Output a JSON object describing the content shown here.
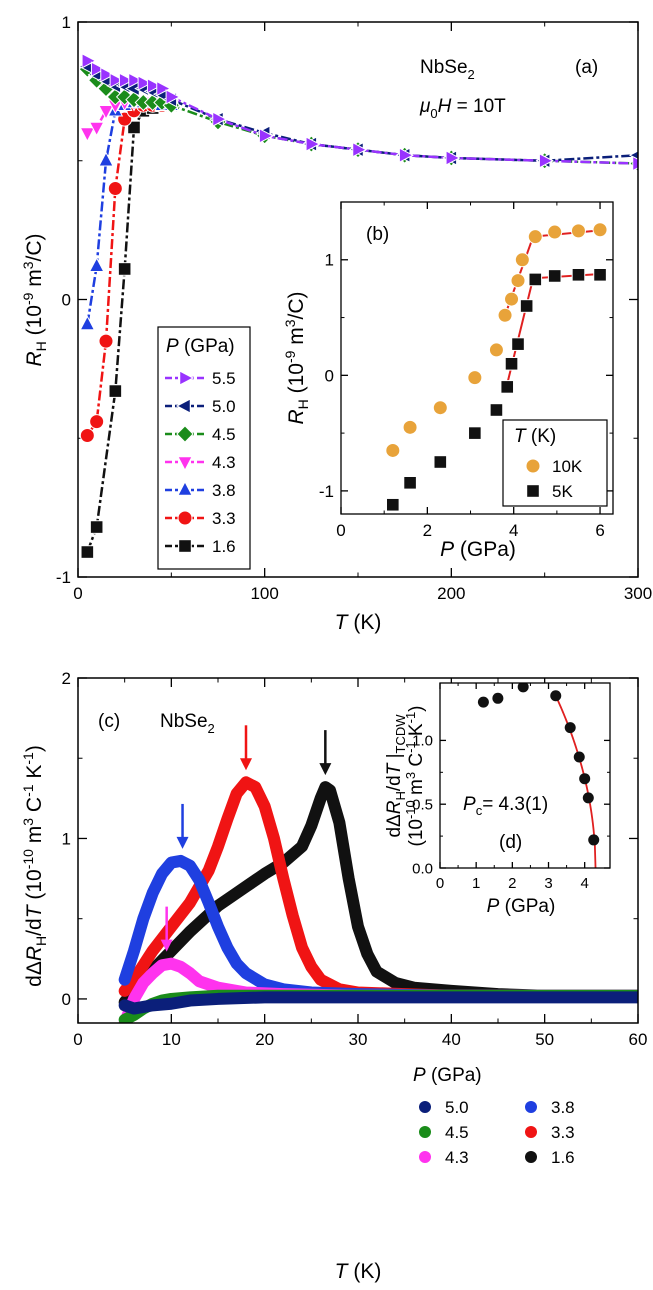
{
  "panels": {
    "a": {
      "letter": "(a)",
      "material_main": "NbSe",
      "material_sub": "2",
      "field_mu": "μ",
      "field_sub": "0",
      "field_H": "H",
      "field_value": " = 10T",
      "ylabel_main": "R",
      "ylabel_sub": "H",
      "ylabel_units": " (10",
      "ylabel_exp": "-9",
      "ylabel_tail": " m",
      "ylabel_exp2": "3",
      "ylabel_end": "/C)",
      "xlabel_italic": "T",
      "xlabel_units": " (K)",
      "legend_title_italic": "P",
      "legend_title_units": " (GPa)"
    },
    "b": {
      "letter": "(b)",
      "ylabel_main": "R",
      "ylabel_sub": "H",
      "ylabel_units": " (10",
      "ylabel_exp": "-9",
      "ylabel_tail": " m",
      "ylabel_exp2": "3",
      "ylabel_end": "/C)",
      "xlabel_italic": "P",
      "xlabel_units": " (GPa)",
      "legend_title_italic": "T",
      "legend_title_units": " (K)"
    },
    "c": {
      "letter": "(c)",
      "material_main": "NbSe",
      "material_sub": "2",
      "ylabel_d": "dΔ",
      "ylabel_R": "R",
      "ylabel_sub": "H",
      "ylabel_mid": "/d",
      "ylabel_T": "T",
      "ylabel_units": " (10",
      "ylabel_exp": "-10",
      "ylabel_tail": " m",
      "ylabel_exp2": "3",
      "ylabel_c": " C",
      "ylabel_exp3": "-1",
      "ylabel_k": " K",
      "ylabel_exp4": "-1",
      "ylabel_end": ")",
      "xlabel_italic": "T",
      "xlabel_units": " (K)",
      "legend_title_italic": "P",
      "legend_title_units": " (GPa)"
    },
    "d": {
      "letter": "(d)",
      "pc_italic": "P",
      "pc_sub": "c",
      "pc_value": "= 4.3(1)",
      "ylabel_line1_d": "dΔ",
      "ylabel_line1_R": "R",
      "ylabel_line1_sub": "H",
      "ylabel_line1_mid": "/d",
      "ylabel_line1_T": "T",
      "ylabel_line1_bar": " |",
      "ylabel_line1_tc": "TCDW",
      "ylabel_line2": "(10",
      "ylabel_line2_exp": "-10",
      "ylabel_line2_tail": " m",
      "ylabel_line2_exp2": "3",
      "ylabel_line2_c": " C",
      "ylabel_line2_exp3": "-1",
      "ylabel_line2_k": " K",
      "ylabel_line2_exp4": "-1",
      "ylabel_line2_end": ")",
      "xlabel_italic": "P",
      "xlabel_units": " (GPa)"
    }
  },
  "chart_data": [
    {
      "panel": "a",
      "type": "line",
      "xlim": [
        0,
        300
      ],
      "ylim": [
        -1,
        1
      ],
      "x_ticks": [
        0,
        100,
        200,
        300
      ],
      "y_ticks": [
        -1,
        0,
        1
      ],
      "x_tick_labels": [
        "0",
        "100",
        "200",
        "300"
      ],
      "y_tick_labels": [
        "-1",
        "0",
        "1"
      ],
      "legend": "left-middle",
      "series": [
        {
          "name": "5.5",
          "marker": "triangle-right",
          "color": "#9933ff",
          "x": [
            5,
            10,
            15,
            20,
            25,
            30,
            35,
            40,
            45,
            50,
            75,
            100,
            125,
            150,
            175,
            200,
            250,
            300
          ],
          "y": [
            0.86,
            0.83,
            0.81,
            0.79,
            0.79,
            0.79,
            0.78,
            0.77,
            0.76,
            0.73,
            0.65,
            0.59,
            0.56,
            0.54,
            0.52,
            0.51,
            0.5,
            0.49
          ]
        },
        {
          "name": "5.0",
          "marker": "triangle-left",
          "color": "#0b1f7a",
          "x": [
            5,
            10,
            15,
            20,
            25,
            30,
            35,
            40,
            45,
            50,
            75,
            100,
            125,
            150,
            175,
            200,
            250,
            300
          ],
          "y": [
            0.84,
            0.81,
            0.79,
            0.77,
            0.77,
            0.76,
            0.76,
            0.75,
            0.74,
            0.72,
            0.65,
            0.6,
            0.56,
            0.54,
            0.52,
            0.51,
            0.5,
            0.52
          ]
        },
        {
          "name": "4.5",
          "marker": "diamond",
          "color": "#1a8c1a",
          "x": [
            5,
            10,
            15,
            20,
            25,
            30,
            35,
            40,
            45,
            50,
            75,
            100,
            125,
            150,
            175,
            200,
            250,
            300
          ],
          "y": [
            0.83,
            0.79,
            0.76,
            0.73,
            0.73,
            0.72,
            0.71,
            0.71,
            0.71,
            0.7,
            0.64,
            0.59,
            0.56,
            0.54,
            0.52,
            0.51,
            0.5,
            0.49
          ]
        },
        {
          "name": "4.3",
          "marker": "triangle-down",
          "color": "#ff33ee",
          "x": [
            5,
            10,
            15,
            20,
            25,
            30,
            35,
            40,
            45,
            50
          ],
          "y": [
            0.6,
            0.62,
            0.68,
            0.7,
            0.71,
            0.71,
            0.71,
            0.71,
            0.71,
            0.7
          ]
        },
        {
          "name": "3.8",
          "marker": "triangle-up",
          "color": "#1f3fe0",
          "x": [
            5,
            10,
            15,
            20,
            25,
            30,
            35,
            40,
            45,
            50
          ],
          "y": [
            -0.09,
            0.12,
            0.5,
            0.68,
            0.7,
            0.71,
            0.71,
            0.71,
            0.7,
            0.7
          ]
        },
        {
          "name": "3.3",
          "marker": "circle",
          "color": "#f01414",
          "x": [
            5,
            10,
            15,
            20,
            25,
            30,
            35,
            40,
            45,
            50
          ],
          "y": [
            -0.49,
            -0.44,
            -0.15,
            0.4,
            0.65,
            0.68,
            0.7,
            0.7,
            0.7,
            0.7
          ]
        },
        {
          "name": "1.6",
          "marker": "square",
          "color": "#111111",
          "x": [
            5,
            10,
            20,
            25,
            30,
            35,
            40,
            45,
            50
          ],
          "y": [
            -0.91,
            -0.82,
            -0.33,
            0.11,
            0.62,
            0.68,
            0.69,
            0.7,
            0.7
          ]
        }
      ]
    },
    {
      "panel": "b",
      "type": "scatter",
      "xlim": [
        0,
        6.3
      ],
      "ylim": [
        -1.2,
        1.5
      ],
      "x_ticks": [
        0,
        2,
        4,
        6
      ],
      "y_ticks": [
        -1,
        0,
        1
      ],
      "x_tick_labels": [
        "0",
        "2",
        "4",
        "6"
      ],
      "y_tick_labels": [
        "-1",
        "0",
        "1"
      ],
      "legend": "bottom-right",
      "series": [
        {
          "name": "10K",
          "marker": "circle",
          "color": "#e8a33a",
          "x": [
            1.2,
            1.6,
            2.3,
            3.1,
            3.6,
            3.8,
            3.95,
            4.1,
            4.2,
            4.5,
            4.95,
            5.5,
            6.0
          ],
          "y": [
            -0.65,
            -0.45,
            -0.28,
            -0.02,
            0.22,
            0.52,
            0.66,
            0.82,
            1.0,
            1.2,
            1.24,
            1.25,
            1.26
          ]
        },
        {
          "name": "5K",
          "marker": "square",
          "color": "#111111",
          "x": [
            1.2,
            1.6,
            2.3,
            3.1,
            3.6,
            3.85,
            3.95,
            4.1,
            4.3,
            4.5,
            4.95,
            5.5,
            6.0
          ],
          "y": [
            -1.12,
            -0.93,
            -0.75,
            -0.5,
            -0.3,
            -0.1,
            0.1,
            0.27,
            0.6,
            0.83,
            0.86,
            0.87,
            0.87
          ]
        }
      ],
      "fits": [
        {
          "x": [
            3.8,
            4.45,
            6.15
          ],
          "y": [
            0.52,
            1.2,
            1.26
          ],
          "color": "#e02020"
        },
        {
          "x": [
            3.8,
            4.45,
            6.15
          ],
          "y": [
            -0.15,
            0.84,
            0.88
          ],
          "color": "#e02020"
        }
      ]
    },
    {
      "panel": "c",
      "type": "line",
      "xlim": [
        0,
        60
      ],
      "ylim": [
        -0.15,
        2
      ],
      "x_ticks": [
        0,
        10,
        20,
        30,
        40,
        50,
        60
      ],
      "y_ticks": [
        0,
        1,
        2
      ],
      "x_tick_labels": [
        "0",
        "10",
        "20",
        "30",
        "40",
        "50",
        "60"
      ],
      "y_tick_labels": [
        "0",
        "1",
        "2"
      ],
      "legend": "right-middle",
      "series": [
        {
          "name": "5.0",
          "color": "#0b1f7a",
          "x": [
            5,
            6,
            8,
            10,
            12,
            15,
            20,
            30,
            40,
            50,
            60
          ],
          "y": [
            -0.04,
            -0.06,
            -0.04,
            -0.03,
            -0.01,
            0.0,
            0.01,
            0.01,
            0.01,
            0.01,
            0.01
          ]
        },
        {
          "name": "4.5",
          "color": "#1a8c1a",
          "x": [
            5,
            6,
            7,
            8,
            9,
            10,
            12,
            15,
            20,
            30,
            40,
            50,
            60
          ],
          "y": [
            -0.13,
            -0.1,
            -0.06,
            -0.03,
            -0.01,
            0.0,
            0.01,
            0.02,
            0.02,
            0.02,
            0.02,
            0.02,
            0.02
          ]
        },
        {
          "name": "4.3",
          "color": "#ff33ee",
          "x": [
            5,
            6,
            7,
            8,
            9,
            10,
            11,
            12,
            13,
            15,
            18,
            22,
            30,
            40,
            50,
            60
          ],
          "y": [
            -0.15,
            0.0,
            0.1,
            0.16,
            0.21,
            0.22,
            0.2,
            0.16,
            0.11,
            0.07,
            0.04,
            0.03,
            0.02,
            0.02,
            0.02,
            0.02
          ]
        },
        {
          "name": "3.8",
          "color": "#1f3fe0",
          "x": [
            5,
            6,
            7,
            8,
            9,
            10,
            11,
            12,
            13,
            14,
            15,
            16,
            17,
            18,
            20,
            22,
            25,
            30,
            40,
            50,
            60
          ],
          "y": [
            0.12,
            0.3,
            0.5,
            0.66,
            0.78,
            0.85,
            0.86,
            0.83,
            0.74,
            0.6,
            0.45,
            0.32,
            0.22,
            0.16,
            0.09,
            0.06,
            0.04,
            0.03,
            0.02,
            0.02,
            0.02
          ]
        },
        {
          "name": "3.3",
          "color": "#f01414",
          "x": [
            5,
            6,
            8,
            10,
            12,
            14,
            15,
            16,
            17,
            18,
            19,
            20,
            21,
            22,
            23,
            24,
            25,
            26,
            28,
            30,
            35,
            40,
            50,
            60
          ],
          "y": [
            0.05,
            0.12,
            0.3,
            0.45,
            0.6,
            0.8,
            0.95,
            1.12,
            1.28,
            1.35,
            1.32,
            1.2,
            1.0,
            0.75,
            0.52,
            0.32,
            0.2,
            0.12,
            0.06,
            0.04,
            0.03,
            0.02,
            0.02,
            0.02
          ]
        },
        {
          "name": "1.6",
          "color": "#111111",
          "x": [
            5,
            6,
            8,
            10,
            12,
            15,
            18,
            20,
            22,
            24,
            25,
            26,
            26.5,
            27,
            28,
            29,
            30,
            31,
            32,
            34,
            36,
            40,
            45,
            50,
            55,
            60
          ],
          "y": [
            -0.02,
            0.05,
            0.18,
            0.3,
            0.42,
            0.58,
            0.7,
            0.78,
            0.85,
            0.95,
            1.08,
            1.25,
            1.32,
            1.3,
            1.1,
            0.75,
            0.45,
            0.28,
            0.17,
            0.1,
            0.07,
            0.05,
            0.03,
            0.02,
            0.02,
            0.02
          ]
        }
      ],
      "arrows": [
        {
          "x": 9.5,
          "color": "#ff33ee"
        },
        {
          "x": 11.2,
          "color": "#1f3fe0"
        },
        {
          "x": 18,
          "color": "#f01414"
        },
        {
          "x": 26.5,
          "color": "#111111"
        }
      ]
    },
    {
      "panel": "d",
      "type": "scatter",
      "xlim": [
        0,
        4.7
      ],
      "ylim": [
        0,
        1.45
      ],
      "x_ticks": [
        0,
        1,
        2,
        3,
        4
      ],
      "y_ticks": [
        0,
        0.5,
        1.0
      ],
      "x_tick_labels": [
        "0",
        "1",
        "2",
        "3",
        "4"
      ],
      "y_tick_labels": [
        "0.0",
        "0.5",
        "1.0"
      ],
      "series": [
        {
          "name": "",
          "marker": "circle",
          "color": "#111111",
          "x": [
            1.2,
            1.6,
            2.3,
            3.2,
            3.6,
            3.85,
            4.0,
            4.1,
            4.25
          ],
          "y": [
            1.3,
            1.33,
            1.42,
            1.35,
            1.1,
            0.87,
            0.7,
            0.55,
            0.22
          ]
        }
      ],
      "fit": {
        "pc": 4.3,
        "color": "#e02020",
        "x_from": 3.2
      }
    }
  ]
}
